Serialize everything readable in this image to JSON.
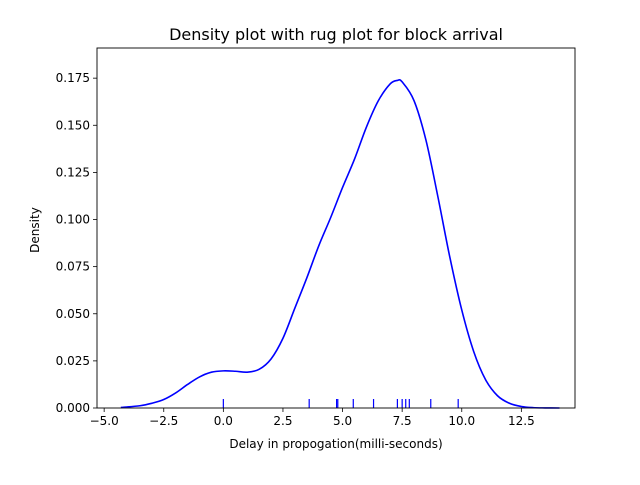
{
  "chart_data": {
    "type": "line",
    "title": "Density plot with rug plot for block arrival",
    "xlabel": "Delay in propogation(milli-seconds)",
    "ylabel": "Density",
    "xlim": [
      -5.3,
      14.75
    ],
    "ylim": [
      0.0,
      0.191
    ],
    "xticks": [
      -5.0,
      -2.5,
      0.0,
      2.5,
      5.0,
      7.5,
      10.0,
      12.5
    ],
    "xtick_labels": [
      "−5.0",
      "−2.5",
      "0.0",
      "2.5",
      "5.0",
      "7.5",
      "10.0",
      "12.5"
    ],
    "yticks": [
      0.0,
      0.025,
      0.05,
      0.075,
      0.1,
      0.125,
      0.15,
      0.175
    ],
    "ytick_labels": [
      "0.000",
      "0.025",
      "0.050",
      "0.075",
      "0.100",
      "0.125",
      "0.150",
      "0.175"
    ],
    "grid": false,
    "legend": "none",
    "line_color": "#0000ff",
    "rug_color": "#0000ff",
    "series": [
      {
        "x": [
          -4.3,
          -3.5,
          -3.0,
          -2.5,
          -2.0,
          -1.5,
          -1.0,
          -0.5,
          0.0,
          0.5,
          1.0,
          1.5,
          2.0,
          2.5,
          3.0,
          3.5,
          4.0,
          4.5,
          5.0,
          5.5,
          6.0,
          6.5,
          7.0,
          7.3,
          7.5,
          8.0,
          8.5,
          9.0,
          9.5,
          10.0,
          10.5,
          11.0,
          11.5,
          12.0,
          12.5,
          13.0,
          13.5,
          14.1
        ],
        "y": [
          0.0003,
          0.0012,
          0.0025,
          0.0045,
          0.008,
          0.0125,
          0.0165,
          0.019,
          0.0197,
          0.0195,
          0.019,
          0.0205,
          0.026,
          0.037,
          0.053,
          0.069,
          0.086,
          0.101,
          0.117,
          0.132,
          0.149,
          0.163,
          0.172,
          0.1738,
          0.173,
          0.163,
          0.142,
          0.112,
          0.08,
          0.052,
          0.03,
          0.015,
          0.0065,
          0.0025,
          0.0008,
          0.0002,
          5e-05,
          0.0
        ]
      }
    ],
    "rug": [
      0.0,
      3.6,
      4.75,
      4.8,
      5.45,
      6.3,
      7.3,
      7.5,
      7.65,
      7.8,
      8.7,
      9.85
    ]
  }
}
